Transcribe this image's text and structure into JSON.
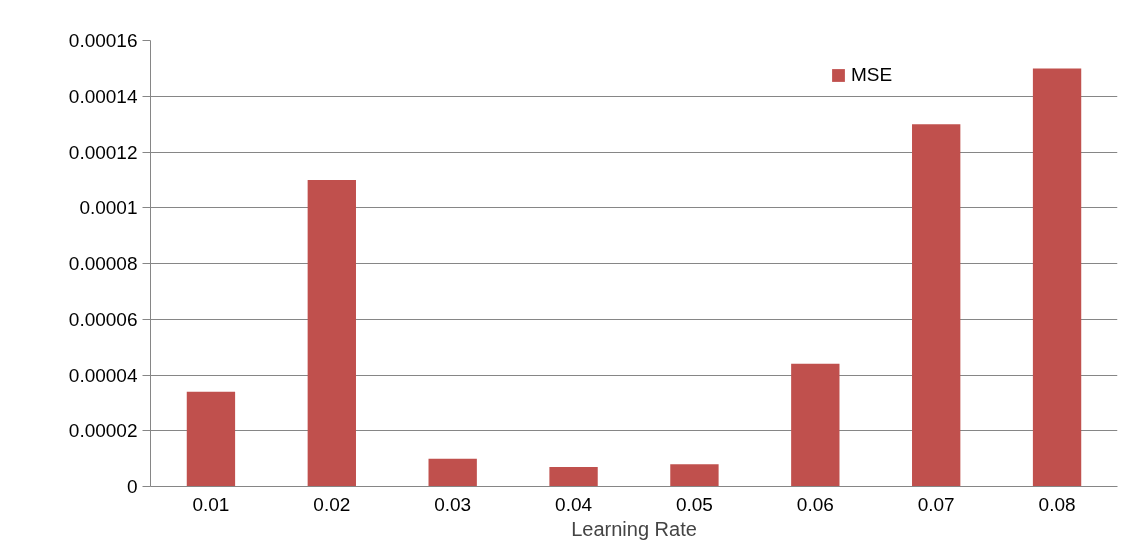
{
  "chart_data": {
    "type": "bar",
    "xlabel": "Learning Rate",
    "categories": [
      "0.01",
      "0.02",
      "0.03",
      "0.04",
      "0.05",
      "0.06",
      "0.07",
      "0.08"
    ],
    "series": [
      {
        "name": "MSE",
        "color": "#c0504d",
        "values": [
          3.4e-05,
          0.00011,
          1e-05,
          7e-06,
          8e-06,
          4.4e-05,
          0.00013,
          0.00015
        ]
      }
    ],
    "ylim": [
      0,
      0.00016
    ],
    "yticks": [
      0,
      {
        "value": 2e-05,
        "label": "0.00002"
      },
      {
        "value": 4e-05,
        "label": "0.00004"
      },
      {
        "value": 6e-05,
        "label": "0.00006"
      },
      {
        "value": 8e-05,
        "label": "0.00008"
      },
      0.0001,
      0.00012,
      0.00014,
      0.00016
    ],
    "grid": "y",
    "legend": "top right"
  }
}
